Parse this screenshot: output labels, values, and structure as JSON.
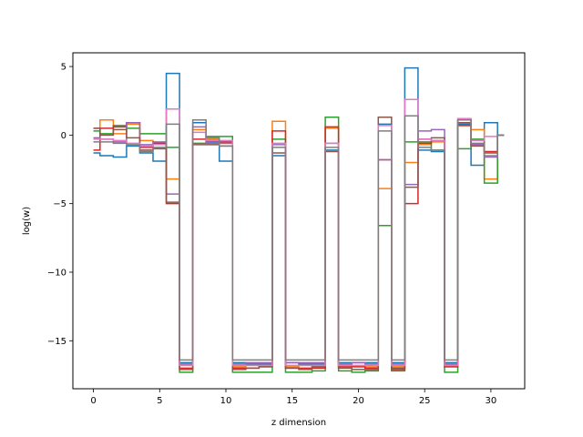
{
  "chart_data": {
    "type": "line",
    "drawstyle": "steps-mid",
    "xlabel": "z dimension",
    "ylabel": "log(w)",
    "xlim": [
      -1.55,
      32.55
    ],
    "ylim": [
      -18.5,
      6
    ],
    "xticks": [
      0,
      5,
      10,
      15,
      20,
      25,
      30
    ],
    "yticks": [
      5,
      0,
      -5,
      -10,
      -15
    ],
    "x": [
      0,
      1,
      2,
      3,
      4,
      5,
      6,
      7,
      8,
      9,
      10,
      11,
      12,
      13,
      14,
      15,
      16,
      17,
      18,
      19,
      20,
      21,
      22,
      23,
      24,
      25,
      26,
      27,
      28,
      29,
      30,
      31
    ],
    "series": [
      {
        "color": "#1f77b4",
        "values": [
          -1.3,
          -1.5,
          -1.6,
          -0.8,
          -1.3,
          -1.9,
          4.5,
          -16.6,
          0.9,
          -0.5,
          -1.9,
          -16.6,
          -16.7,
          -16.7,
          -1.5,
          -16.6,
          -16.7,
          -16.7,
          -1.1,
          -16.6,
          -16.6,
          -16.6,
          0.8,
          -16.6,
          4.9,
          -1.1,
          -1.2,
          -16.6,
          0.8,
          -2.2,
          0.9,
          0
        ]
      },
      {
        "color": "#ff7f0e",
        "values": [
          0.5,
          1.1,
          0.1,
          0.8,
          -0.4,
          -0.6,
          -3.2,
          -16.8,
          0.4,
          -0.3,
          -0.6,
          -16.9,
          -16.8,
          -16.8,
          1,
          -16.9,
          -16.8,
          -16.9,
          0.5,
          -16.8,
          -16.9,
          -16.9,
          -3.9,
          -16.9,
          -2,
          -0.7,
          -0.5,
          -16.9,
          0.7,
          0.4,
          -3.2,
          0
        ]
      },
      {
        "color": "#2ca02c",
        "values": [
          0.3,
          0.1,
          0.7,
          0.5,
          0.1,
          0.1,
          -0.9,
          -17.3,
          -0.6,
          -0.1,
          -0.1,
          -17.3,
          -17.3,
          -17.3,
          -0.3,
          -17.3,
          -17.3,
          -17.2,
          1.3,
          -17.2,
          -17.3,
          -17.2,
          -6.6,
          -17.2,
          -0.5,
          -0.5,
          -1.1,
          -17.3,
          -1,
          -0.3,
          -3.5,
          0
        ]
      },
      {
        "color": "#d62728",
        "values": [
          -1.1,
          0.5,
          0.6,
          0.9,
          -0.9,
          -0.6,
          -5,
          -17,
          -0.3,
          -0.4,
          -0.5,
          -17,
          -17,
          -16.9,
          0.3,
          -17,
          -17,
          -17,
          0.6,
          -16.9,
          -16.9,
          -17,
          -1.8,
          -17.1,
          -5,
          -0.6,
          -0.4,
          -16.9,
          0.7,
          -0.7,
          -1.2,
          0
        ]
      },
      {
        "color": "#9467bd",
        "values": [
          -0.2,
          -0.3,
          -0.5,
          0.9,
          -0.7,
          -0.5,
          -4.3,
          -16.7,
          0.6,
          -0.6,
          -0.6,
          -16.7,
          -16.6,
          -16.6,
          -0.7,
          -16.6,
          -16.6,
          -16.6,
          -0.6,
          -16.7,
          -16.6,
          -16.7,
          -1.8,
          -16.7,
          -3.6,
          0.3,
          0.4,
          -16.7,
          1.1,
          -0.7,
          -1.6,
          0
        ]
      },
      {
        "color": "#8c564b",
        "values": [
          0.5,
          0,
          0.4,
          -0.2,
          -1.1,
          -1,
          -4.9,
          -17.1,
          -0.7,
          -0.7,
          -0.8,
          -17.1,
          -17,
          -16.9,
          -1.3,
          -17,
          -17.1,
          -16.9,
          -1.2,
          -17,
          -17.1,
          -17.1,
          1.3,
          -17,
          -3.8,
          -0.3,
          -0.2,
          -16.8,
          0.9,
          -0.8,
          -1.3,
          0
        ]
      },
      {
        "color": "#e377c2",
        "values": [
          -0.3,
          -0.3,
          -0.4,
          -0.6,
          -0.8,
          -0.7,
          1.9,
          -16.8,
          0.2,
          -0.4,
          -0.4,
          -16.8,
          -16.8,
          -16.8,
          -0.6,
          -16.8,
          -16.8,
          -16.8,
          -0.6,
          -16.8,
          -16.8,
          -16.8,
          0.7,
          -16.8,
          2.6,
          -0.3,
          -0.4,
          -16.8,
          1.2,
          -0.4,
          -0.1,
          0
        ]
      },
      {
        "color": "#7f7f7f",
        "values": [
          -0.5,
          -0.5,
          -0.6,
          -0.7,
          -1.2,
          -0.9,
          0.8,
          -16.4,
          1.1,
          -0.2,
          -0.8,
          -16.4,
          -16.4,
          -16.4,
          -0.9,
          -16.4,
          -16.4,
          -16.4,
          -0.9,
          -16.4,
          -16.4,
          -16.4,
          0.3,
          -16.4,
          1.4,
          -0.9,
          -1.1,
          -16.4,
          1.1,
          -0.6,
          -1.5,
          0
        ]
      }
    ]
  }
}
